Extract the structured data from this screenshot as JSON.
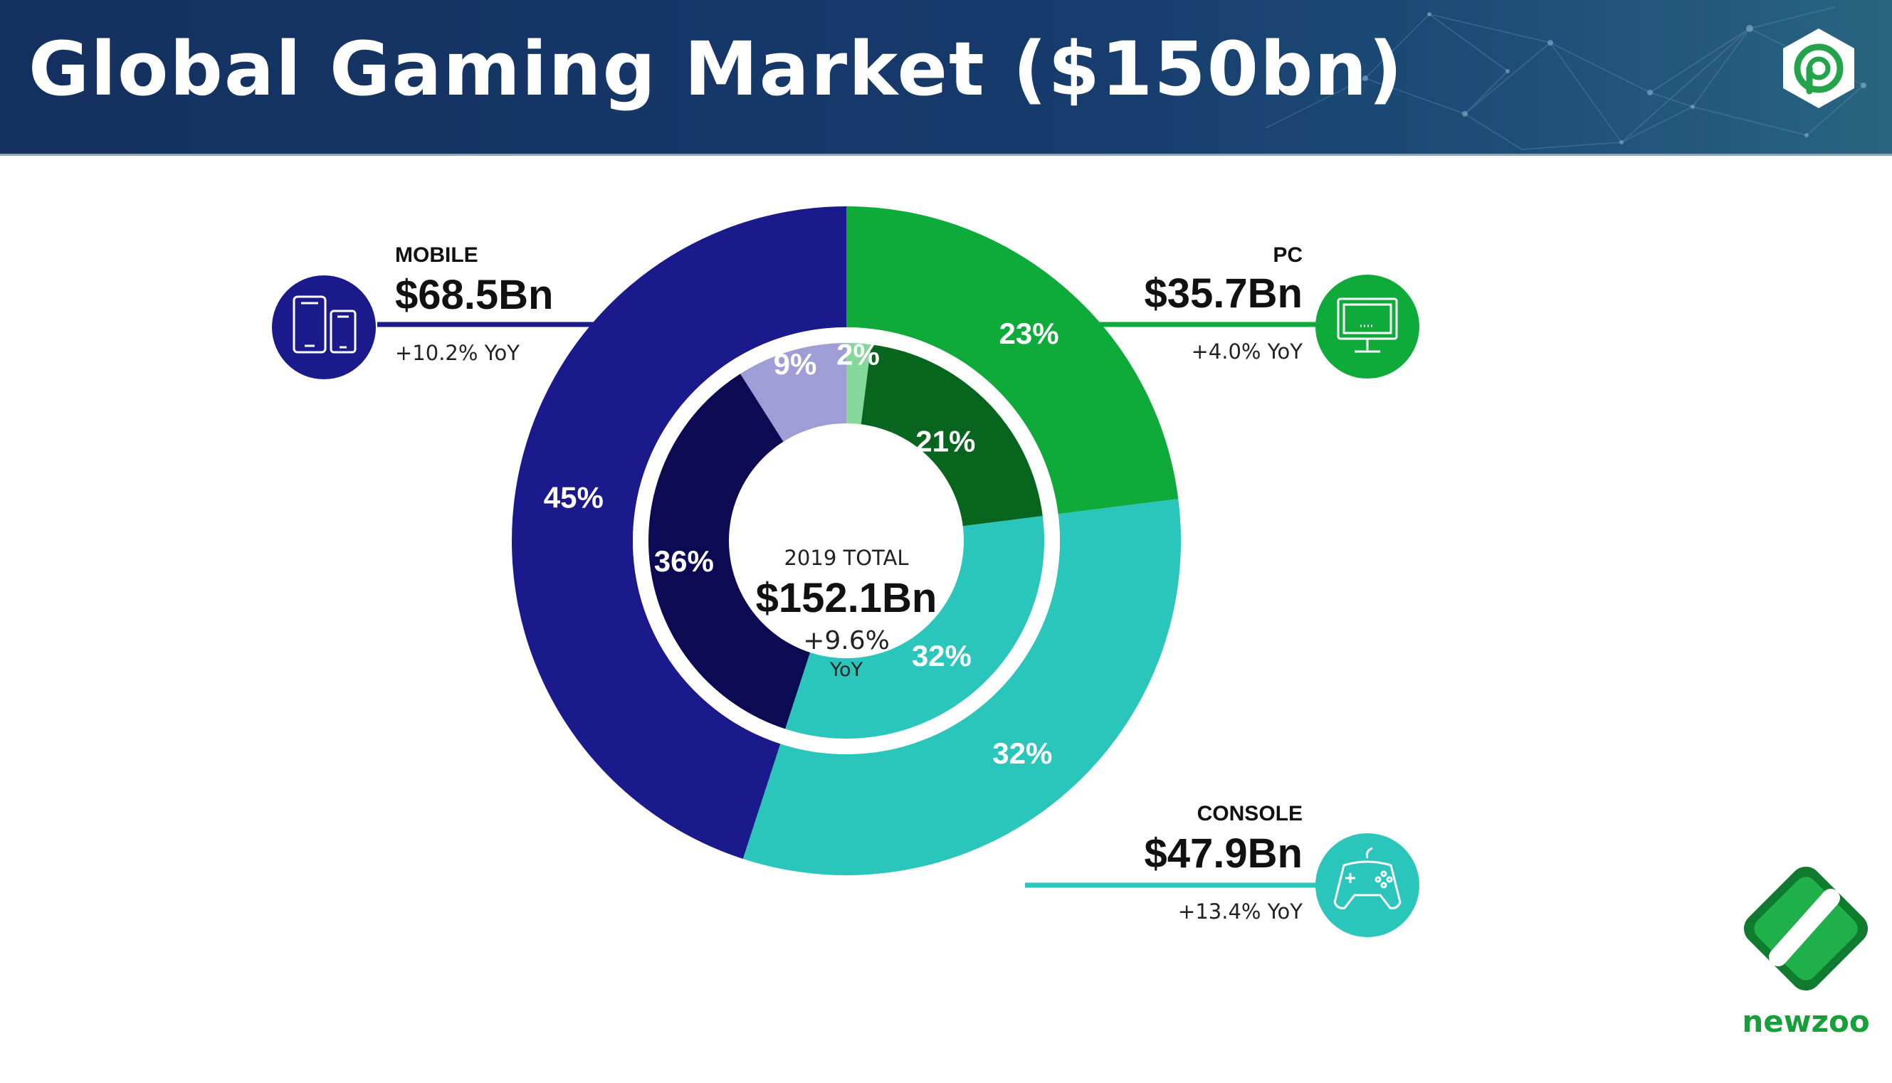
{
  "header": {
    "title": "Global Gaming Market ($150bn)"
  },
  "brand": {
    "name": "newzoo"
  },
  "colors": {
    "mobile": "#1b1a8c",
    "mobile_inner": "#0b0a52",
    "mobile_light": "#9f9dd6",
    "pc": "#0eaa3a",
    "pc_inner": "#07651e",
    "pc_light": "#86d79a",
    "console": "#2bc6bb"
  },
  "chart_data": {
    "type": "donut",
    "center": {
      "label": "2019 TOTAL",
      "value": "$152.1Bn",
      "growth": "+9.6%",
      "growth_unit": "YoY"
    },
    "outer_ring": [
      {
        "name": "Mobile",
        "share": 45,
        "label": "45%"
      },
      {
        "name": "PC",
        "share": 23,
        "label": "23%"
      },
      {
        "name": "Console",
        "share": 32,
        "label": "32%"
      }
    ],
    "inner_ring": [
      {
        "name": "PC sub-segment",
        "share": 2,
        "label": "2%"
      },
      {
        "name": "PC sub-segment",
        "share": 21,
        "label": "21%"
      },
      {
        "name": "Console",
        "share": 32,
        "label": "32%"
      },
      {
        "name": "Mobile sub-segment",
        "share": 36,
        "label": "36%"
      },
      {
        "name": "Mobile sub-segment",
        "share": 9,
        "label": "9%"
      }
    ],
    "segments": {
      "mobile": {
        "name": "MOBILE",
        "value": "$68.5Bn",
        "growth": "+10.2% YoY"
      },
      "pc": {
        "name": "PC",
        "value": "$35.7Bn",
        "growth": "+4.0% YoY"
      },
      "console": {
        "name": "CONSOLE",
        "value": "$47.9Bn",
        "growth": "+13.4% YoY"
      }
    }
  }
}
